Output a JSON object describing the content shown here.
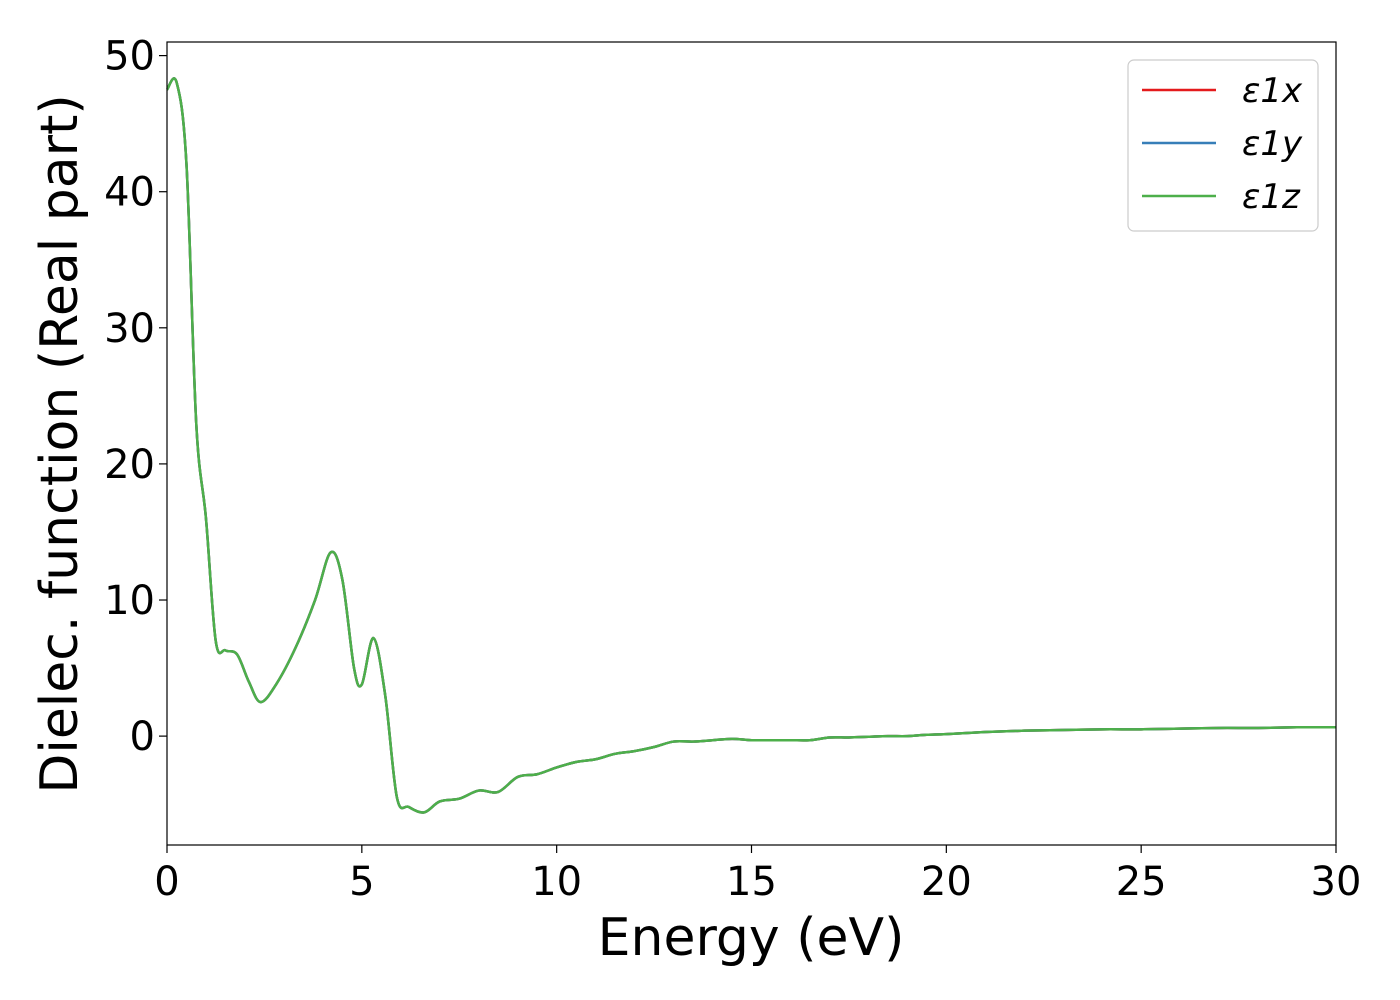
{
  "chart_data": {
    "type": "line",
    "title": "",
    "xlabel": "Energy (eV)",
    "ylabel": "Dielec. function (Real part)",
    "xlim": [
      0,
      30
    ],
    "ylim": [
      -8,
      51
    ],
    "xticks": [
      0,
      5,
      10,
      15,
      20,
      25,
      30
    ],
    "yticks": [
      0,
      10,
      20,
      30,
      40,
      50
    ],
    "grid": false,
    "legend_position": "top-right",
    "x": [
      0.0,
      0.25,
      0.5,
      0.75,
      1.0,
      1.25,
      1.5,
      1.8,
      2.1,
      2.4,
      2.8,
      3.3,
      3.8,
      4.2,
      4.5,
      4.8,
      5.0,
      5.3,
      5.6,
      5.9,
      6.2,
      6.6,
      7.0,
      7.5,
      8.0,
      8.5,
      9.0,
      9.5,
      10.0,
      10.5,
      11.0,
      11.5,
      12.0,
      12.5,
      13.0,
      13.5,
      14.0,
      14.5,
      15.0,
      15.5,
      16.0,
      16.5,
      17.0,
      17.5,
      18.0,
      18.5,
      19.0,
      19.5,
      20.0,
      21.0,
      22.0,
      23.0,
      24.0,
      25.0,
      26.0,
      27.0,
      28.0,
      29.0,
      30.0
    ],
    "series": [
      {
        "name": "ε1x",
        "color": "#e41a1c",
        "values": [
          47.5,
          48.0,
          42.0,
          23.0,
          16.0,
          7.0,
          6.3,
          6.0,
          4.0,
          2.5,
          3.8,
          6.5,
          10.0,
          13.5,
          11.5,
          5.0,
          3.8,
          7.2,
          3.0,
          -4.5,
          -5.2,
          -5.6,
          -4.8,
          -4.6,
          -4.0,
          -4.1,
          -3.0,
          -2.8,
          -2.3,
          -1.9,
          -1.7,
          -1.3,
          -1.1,
          -0.8,
          -0.4,
          -0.4,
          -0.3,
          -0.2,
          -0.3,
          -0.3,
          -0.3,
          -0.3,
          -0.1,
          -0.1,
          -0.05,
          0.0,
          0.0,
          0.1,
          0.15,
          0.3,
          0.4,
          0.45,
          0.5,
          0.5,
          0.55,
          0.6,
          0.6,
          0.65,
          0.65
        ]
      },
      {
        "name": "ε1y",
        "color": "#377eb8",
        "values": [
          47.5,
          48.0,
          42.0,
          23.0,
          16.0,
          7.0,
          6.3,
          6.0,
          4.0,
          2.5,
          3.8,
          6.5,
          10.0,
          13.5,
          11.5,
          5.0,
          3.8,
          7.2,
          3.0,
          -4.5,
          -5.2,
          -5.6,
          -4.8,
          -4.6,
          -4.0,
          -4.1,
          -3.0,
          -2.8,
          -2.3,
          -1.9,
          -1.7,
          -1.3,
          -1.1,
          -0.8,
          -0.4,
          -0.4,
          -0.3,
          -0.2,
          -0.3,
          -0.3,
          -0.3,
          -0.3,
          -0.1,
          -0.1,
          -0.05,
          0.0,
          0.0,
          0.1,
          0.15,
          0.3,
          0.4,
          0.45,
          0.5,
          0.5,
          0.55,
          0.6,
          0.6,
          0.65,
          0.65
        ]
      },
      {
        "name": "ε1z",
        "color": "#4daf4a",
        "values": [
          47.5,
          48.0,
          42.0,
          23.0,
          16.0,
          7.0,
          6.3,
          6.0,
          4.0,
          2.5,
          3.8,
          6.5,
          10.0,
          13.5,
          11.5,
          5.0,
          3.8,
          7.2,
          3.0,
          -4.5,
          -5.2,
          -5.6,
          -4.8,
          -4.6,
          -4.0,
          -4.1,
          -3.0,
          -2.8,
          -2.3,
          -1.9,
          -1.7,
          -1.3,
          -1.1,
          -0.8,
          -0.4,
          -0.4,
          -0.3,
          -0.2,
          -0.3,
          -0.3,
          -0.3,
          -0.3,
          -0.1,
          -0.1,
          -0.05,
          0.0,
          0.0,
          0.1,
          0.15,
          0.3,
          0.4,
          0.45,
          0.5,
          0.5,
          0.55,
          0.6,
          0.6,
          0.65,
          0.65
        ]
      }
    ]
  }
}
